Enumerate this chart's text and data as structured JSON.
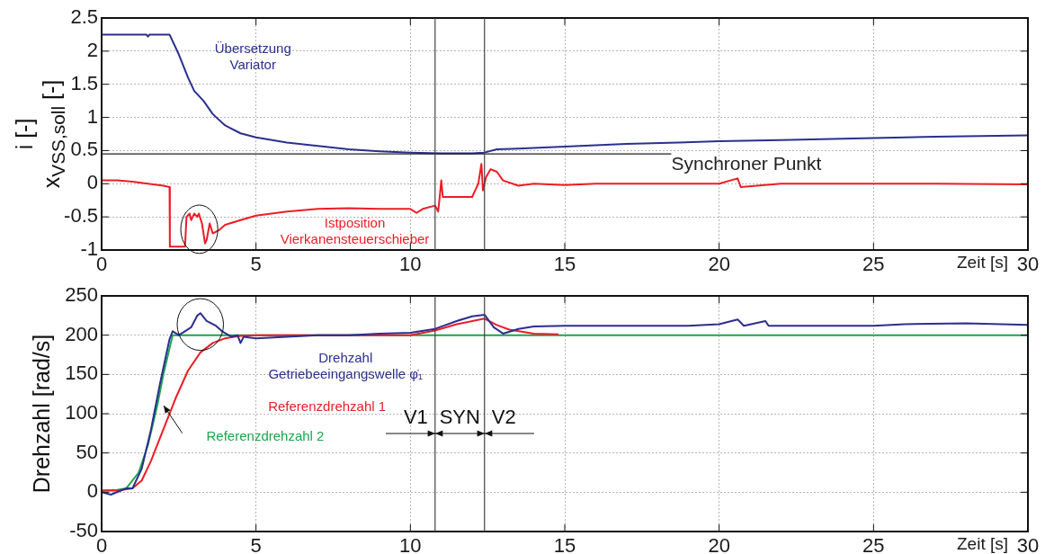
{
  "chart_data": [
    {
      "type": "line",
      "xlabel": "Zeit [s]",
      "ylabel": "i [-]\nx$_{VSS,soll}$ [-]",
      "xlim": [
        0,
        30
      ],
      "xticks": [
        0,
        5,
        10,
        15,
        20,
        25,
        30
      ],
      "ylim": [
        -1,
        2.5
      ],
      "yticks": [
        -1,
        -0.5,
        0,
        0.5,
        1,
        1.5,
        2,
        2.5
      ],
      "grid": true,
      "legend": false,
      "series": [
        {
          "name": "Übersetzung Variator",
          "color": "#2b2f8f",
          "x": [
            0,
            1.45,
            1.5,
            1.55,
            2.2,
            2.5,
            2.8,
            3.0,
            3.3,
            3.6,
            4,
            4.5,
            5,
            6,
            7,
            8,
            9,
            10,
            11,
            12,
            12.4,
            12.8,
            13.5,
            15,
            17,
            20,
            22,
            25,
            27,
            30
          ],
          "values": [
            2.25,
            2.25,
            2.22,
            2.25,
            2.25,
            1.95,
            1.6,
            1.4,
            1.25,
            1.05,
            0.88,
            0.76,
            0.7,
            0.62,
            0.57,
            0.52,
            0.49,
            0.47,
            0.46,
            0.46,
            0.47,
            0.52,
            0.53,
            0.56,
            0.6,
            0.64,
            0.66,
            0.69,
            0.71,
            0.73
          ]
        },
        {
          "name": "Istposition Vierkanensteuerschieber",
          "color": "#ee1c25",
          "x": [
            0,
            0.5,
            1,
            1.5,
            2,
            2.2,
            2.21,
            2.7,
            2.75,
            2.85,
            2.9,
            3.0,
            3.1,
            3.15,
            3.25,
            3.35,
            3.4,
            3.5,
            3.6,
            3.8,
            4,
            4.5,
            5,
            6,
            7,
            8,
            9,
            10,
            10.2,
            10.4,
            10.8,
            10.9,
            10.95,
            11.0,
            11.05,
            11.5,
            12,
            12.1,
            12.2,
            12.3,
            12.35,
            12.45,
            12.6,
            12.8,
            13,
            13.5,
            14,
            15,
            16,
            18,
            20,
            20.6,
            20.7,
            22,
            25,
            27,
            30
          ],
          "values": [
            0.05,
            0.05,
            0.03,
            0,
            -0.03,
            -0.05,
            -0.95,
            -0.95,
            -0.5,
            -0.45,
            -0.55,
            -0.45,
            -0.5,
            -0.45,
            -0.6,
            -0.9,
            -0.85,
            -0.6,
            -0.75,
            -0.7,
            -0.62,
            -0.55,
            -0.48,
            -0.42,
            -0.38,
            -0.37,
            -0.38,
            -0.38,
            -0.44,
            -0.38,
            -0.33,
            -0.42,
            -0.2,
            0.05,
            -0.2,
            -0.2,
            -0.2,
            -0.1,
            0,
            0.3,
            -0.1,
            0.1,
            0.22,
            0.18,
            0.05,
            -0.03,
            0,
            -0.02,
            0,
            0,
            0,
            0.08,
            -0.05,
            0,
            0,
            0,
            -0.01
          ]
        }
      ],
      "ref_lines": [
        {
          "axis": "y",
          "value": 0.45,
          "label": "Synchroner Punkt",
          "color": "#222222"
        },
        {
          "axis": "x",
          "value": 10.8,
          "color": "#444444"
        },
        {
          "axis": "x",
          "value": 12.4,
          "color": "#444444"
        }
      ]
    },
    {
      "type": "line",
      "xlabel": "Zeit [s]",
      "ylabel": "Drehzahl [rad/s]",
      "xlim": [
        0,
        30
      ],
      "xticks": [
        0,
        5,
        10,
        15,
        20,
        25,
        30
      ],
      "ylim": [
        -50,
        250
      ],
      "yticks": [
        -50,
        0,
        50,
        100,
        150,
        200,
        250
      ],
      "grid": true,
      "legend": false,
      "series": [
        {
          "name": "Drehzahl Getriebeeingangswelle φ̇₁",
          "color": "#2b2f8f",
          "x": [
            0,
            0.3,
            0.8,
            1.0,
            1.3,
            1.6,
            1.9,
            2.2,
            2.3,
            2.5,
            2.7,
            2.9,
            3.1,
            3.2,
            3.4,
            3.7,
            3.9,
            4.2,
            4.4,
            4.5,
            4.6,
            5,
            6,
            7,
            8,
            9,
            10,
            10.8,
            11.5,
            12,
            12.4,
            12.7,
            13,
            13.5,
            14,
            15,
            17,
            19,
            20,
            20.6,
            20.8,
            21.5,
            21.6,
            23,
            25,
            26,
            28,
            30
          ],
          "values": [
            0,
            -3,
            5,
            5,
            30,
            80,
            140,
            195,
            205,
            200,
            205,
            210,
            225,
            228,
            218,
            212,
            205,
            198,
            200,
            190,
            198,
            196,
            198,
            200,
            200,
            202,
            203,
            208,
            218,
            224,
            226,
            210,
            202,
            208,
            211,
            212,
            212,
            212,
            214,
            220,
            212,
            218,
            212,
            212,
            212,
            214,
            215,
            213
          ]
        },
        {
          "name": "Referenzdrehzahl 1",
          "color": "#ee1c25",
          "x": [
            0,
            0.5,
            1,
            1.3,
            1.6,
            2,
            2.4,
            2.8,
            3.2,
            3.6,
            4,
            4.5,
            5,
            10,
            10.8,
            11.5,
            12.4,
            12.8,
            13.2,
            14,
            14.8
          ],
          "values": [
            2,
            2,
            5,
            15,
            40,
            80,
            120,
            155,
            178,
            190,
            196,
            199,
            200,
            200,
            206,
            214,
            221,
            213,
            207,
            202,
            201
          ]
        },
        {
          "name": "Referenzdrehzahl 2",
          "color": "#1aa64b",
          "x": [
            0,
            0.5,
            0.8,
            1.2,
            1.5,
            1.8,
            2.0,
            2.3,
            30
          ],
          "values": [
            2,
            3,
            5,
            25,
            60,
            110,
            150,
            200,
            200
          ]
        }
      ],
      "ref_lines": [
        {
          "axis": "x",
          "value": 10.8,
          "color": "#444444"
        },
        {
          "axis": "x",
          "value": 12.4,
          "color": "#444444"
        }
      ],
      "annotations": [
        {
          "text": "V1",
          "x": 10.8,
          "y": 75
        },
        "SYN",
        {
          "text": "V2",
          "x": 12.4,
          "y": 75
        }
      ]
    }
  ]
}
